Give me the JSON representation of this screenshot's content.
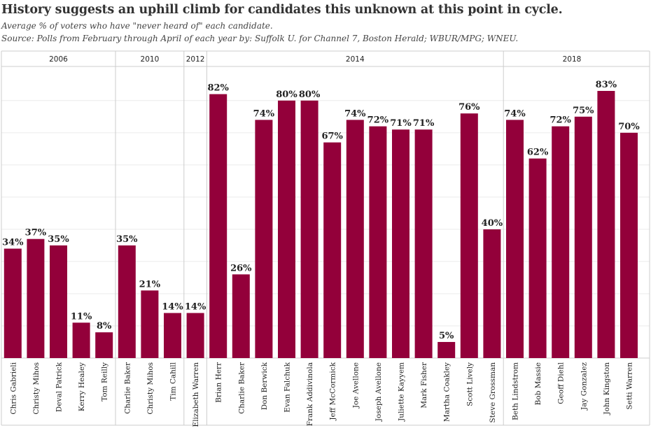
{
  "title": "History suggests an uphill climb for candidates this unknown at this point in cycle.",
  "subtitle": "Average % of voters who have \"never heard of\" each candidate.",
  "source": "Source: Polls from February through April of each year by: Suffolk U. for Channel 7, Boston Herald; WBUR/MPG; WNEU.",
  "colors": {
    "bar": "#93003a",
    "grid": "#ebebeb",
    "divider": "#cccccc",
    "text": "#222222"
  },
  "chart_data": {
    "type": "bar",
    "title": "History suggests an uphill climb for candidates this unknown at this point in cycle.",
    "ylabel": "",
    "xlabel": "",
    "ylim": [
      0,
      85
    ],
    "value_suffix": "%",
    "groups": [
      {
        "label": "2006",
        "categories": [
          "Chris Gabrieli",
          "Christy Mihos",
          "Deval Patrick",
          "Kerry Healey",
          "Tom Reilly"
        ],
        "values": [
          34,
          37,
          35,
          11,
          8
        ]
      },
      {
        "label": "2010",
        "categories": [
          "Charlie Baker",
          "Christy Mihos",
          "Tim Cahill"
        ],
        "values": [
          35,
          21,
          14
        ]
      },
      {
        "label": "2012",
        "categories": [
          "Elizabeth Warren"
        ],
        "values": [
          14
        ]
      },
      {
        "label": "2014",
        "categories": [
          "Brian Herr",
          "Charlie Baker",
          "Don Berwick",
          "Evan Falchuk",
          "Frank Addivinola",
          "Jeff McCormick",
          "Joe Avellone",
          "Joseph Avellone",
          "Juliette Kayyem",
          "Mark Fisher",
          "Martha Coakley",
          "Scott Lively",
          "Steve Grossman"
        ],
        "values": [
          82,
          26,
          74,
          80,
          80,
          67,
          74,
          72,
          71,
          71,
          5,
          76,
          40
        ]
      },
      {
        "label": "2018",
        "categories": [
          "Beth Lindstrom",
          "Bob Massie",
          "Geoff Diehl",
          "Jay Gonzalez",
          "John Kingston",
          "Setti Warren"
        ],
        "values": [
          74,
          62,
          72,
          75,
          83,
          70
        ]
      }
    ]
  }
}
